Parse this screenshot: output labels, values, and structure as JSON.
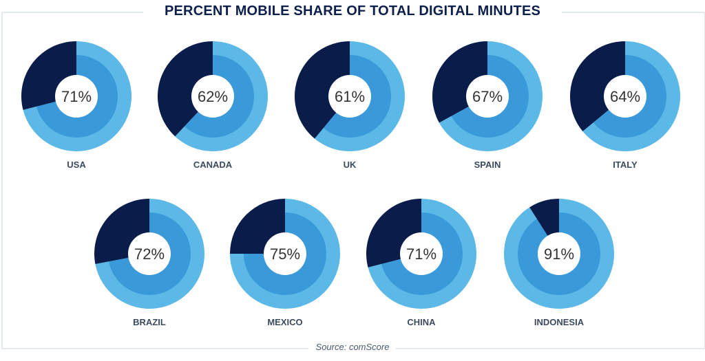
{
  "chart_data": {
    "type": "pie",
    "subtype": "donut",
    "title": "PERCENT MOBILE SHARE OF TOTAL DIGITAL MINUTES",
    "source": "Source: comScore",
    "colors": {
      "mobile_outer": "#5cb8e6",
      "mobile_inner": "#3a9ad9",
      "other": "#0a1c4a",
      "center": "#ffffff"
    },
    "series": [
      {
        "name": "USA",
        "value": 71,
        "label": "71%"
      },
      {
        "name": "CANADA",
        "value": 62,
        "label": "62%"
      },
      {
        "name": "UK",
        "value": 61,
        "label": "61%"
      },
      {
        "name": "SPAIN",
        "value": 67,
        "label": "67%"
      },
      {
        "name": "ITALY",
        "value": 64,
        "label": "64%"
      },
      {
        "name": "BRAZIL",
        "value": 72,
        "label": "72%"
      },
      {
        "name": "MEXICO",
        "value": 75,
        "label": "75%"
      },
      {
        "name": "CHINA",
        "value": 71,
        "label": "71%"
      },
      {
        "name": "INDONESIA",
        "value": 91,
        "label": "91%"
      }
    ]
  }
}
